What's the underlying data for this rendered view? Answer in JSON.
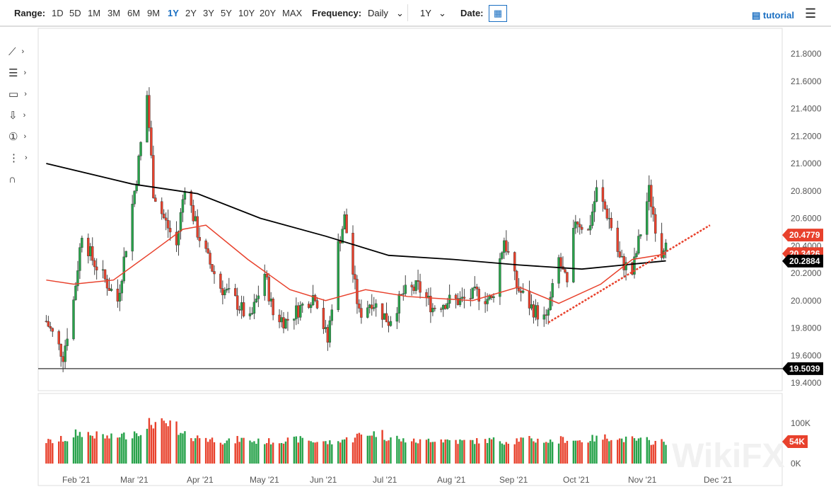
{
  "toolbar": {
    "range_label": "Range:",
    "ranges": [
      "1D",
      "5D",
      "1M",
      "3M",
      "6M",
      "9M",
      "1Y",
      "2Y",
      "3Y",
      "5Y",
      "10Y",
      "20Y",
      "MAX"
    ],
    "active_range": "1Y",
    "frequency_label": "Frequency:",
    "frequency": "Daily",
    "period": "1Y",
    "date_label": "Date:",
    "tutorial": "tutorial"
  },
  "tools": [
    "line-tool-icon",
    "fib-tool-icon",
    "rectangle-tool-icon",
    "arrow-tool-icon",
    "counter-tool-icon",
    "pattern-tool-icon",
    "magnet-icon"
  ],
  "colors": {
    "up": "#27a24a",
    "down": "#e8412c",
    "sma50": "#e8412c",
    "sma200": "#000000",
    "trend": "#e8412c"
  },
  "chart_data": {
    "type": "candlestick",
    "y_ticks": [
      "21.8000",
      "21.6000",
      "21.4000",
      "21.2000",
      "21.0000",
      "20.8000",
      "20.6000",
      "20.4000",
      "20.2000",
      "20.0000",
      "19.8000",
      "19.6000",
      "19.4000"
    ],
    "ylim": [
      19.4,
      21.8
    ],
    "x_ticks": [
      "Feb '21",
      "Mar '21",
      "Apr '21",
      "May '21",
      "Jun '21",
      "Jul '21",
      "Aug '21",
      "Sep '21",
      "Oct '21",
      "Nov '21",
      "Dec '21"
    ],
    "closes": [
      [
        "2021-01-19",
        19.85
      ],
      [
        "2021-01-27",
        19.6
      ],
      [
        "2021-02-01",
        20.0
      ],
      [
        "2021-02-05",
        20.5
      ],
      [
        "2021-02-10",
        20.3
      ],
      [
        "2021-02-16",
        20.15
      ],
      [
        "2021-02-22",
        20.0
      ],
      [
        "2021-02-26",
        20.4
      ],
      [
        "2021-03-03",
        20.9
      ],
      [
        "2021-03-08",
        21.5
      ],
      [
        "2021-03-11",
        20.8
      ],
      [
        "2021-03-16",
        20.6
      ],
      [
        "2021-03-22",
        20.4
      ],
      [
        "2021-03-26",
        20.85
      ],
      [
        "2021-04-01",
        20.5
      ],
      [
        "2021-04-06",
        20.3
      ],
      [
        "2021-04-12",
        20.1
      ],
      [
        "2021-04-19",
        20.0
      ],
      [
        "2021-04-26",
        19.85
      ],
      [
        "2021-05-03",
        20.2
      ],
      [
        "2021-05-07",
        19.9
      ],
      [
        "2021-05-13",
        19.85
      ],
      [
        "2021-05-20",
        19.95
      ],
      [
        "2021-05-27",
        20.05
      ],
      [
        "2021-06-02",
        19.7
      ],
      [
        "2021-06-07",
        20.4
      ],
      [
        "2021-06-10",
        20.6
      ],
      [
        "2021-06-17",
        19.9
      ],
      [
        "2021-06-23",
        20.0
      ],
      [
        "2021-07-01",
        19.85
      ],
      [
        "2021-07-08",
        20.05
      ],
      [
        "2021-07-15",
        20.1
      ],
      [
        "2021-07-22",
        19.95
      ],
      [
        "2021-07-29",
        20.0
      ],
      [
        "2021-08-05",
        20.0
      ],
      [
        "2021-08-12",
        20.05
      ],
      [
        "2021-08-19",
        20.0
      ],
      [
        "2021-08-25",
        20.45
      ],
      [
        "2021-08-31",
        20.1
      ],
      [
        "2021-09-07",
        19.95
      ],
      [
        "2021-09-14",
        19.85
      ],
      [
        "2021-09-20",
        20.3
      ],
      [
        "2021-09-24",
        20.1
      ],
      [
        "2021-09-28",
        20.6
      ],
      [
        "2021-10-04",
        20.5
      ],
      [
        "2021-10-08",
        20.8
      ],
      [
        "2021-10-14",
        20.6
      ],
      [
        "2021-10-19",
        20.3
      ],
      [
        "2021-10-25",
        20.2
      ],
      [
        "2021-10-29",
        20.5
      ],
      [
        "2021-11-02",
        20.8
      ],
      [
        "2021-11-05",
        20.55
      ],
      [
        "2021-11-08",
        20.35
      ],
      [
        "2021-11-10",
        20.48
      ]
    ],
    "sma200": [
      [
        "2021-01-19",
        21.0
      ],
      [
        "2021-03-01",
        20.85
      ],
      [
        "2021-04-01",
        20.78
      ],
      [
        "2021-05-01",
        20.6
      ],
      [
        "2021-06-01",
        20.47
      ],
      [
        "2021-07-01",
        20.33
      ],
      [
        "2021-08-01",
        20.3
      ],
      [
        "2021-09-01",
        20.26
      ],
      [
        "2021-10-01",
        20.23
      ],
      [
        "2021-11-10",
        20.29
      ]
    ],
    "sma50": [
      [
        "2021-01-19",
        20.15
      ],
      [
        "2021-02-01",
        20.12
      ],
      [
        "2021-02-20",
        20.15
      ],
      [
        "2021-03-10",
        20.35
      ],
      [
        "2021-03-25",
        20.52
      ],
      [
        "2021-04-05",
        20.55
      ],
      [
        "2021-04-25",
        20.3
      ],
      [
        "2021-05-15",
        20.08
      ],
      [
        "2021-06-01",
        20.0
      ],
      [
        "2021-06-20",
        20.08
      ],
      [
        "2021-07-10",
        20.03
      ],
      [
        "2021-08-10",
        20.0
      ],
      [
        "2021-09-01",
        20.1
      ],
      [
        "2021-09-20",
        19.98
      ],
      [
        "2021-10-10",
        20.12
      ],
      [
        "2021-10-25",
        20.3
      ],
      [
        "2021-11-10",
        20.34
      ]
    ],
    "trendline": [
      [
        "2021-09-15",
        19.84
      ],
      [
        "2021-12-01",
        20.55
      ]
    ],
    "horizontal_line": 19.5039,
    "labels": {
      "last": "20.4779",
      "sma50": "20.3426",
      "sma200": "20.2884",
      "hline": "19.5039"
    },
    "volume": {
      "y_ticks": [
        "100K",
        "0K"
      ],
      "last": "54K",
      "weekly_avg": [
        55,
        60,
        75,
        70,
        65,
        70,
        80,
        100,
        95,
        70,
        65,
        60,
        55,
        60,
        55,
        55,
        58,
        60,
        55,
        52,
        60,
        70,
        75,
        65,
        58,
        55,
        60,
        58,
        55,
        56,
        58,
        55,
        60,
        58,
        55,
        60,
        57,
        62,
        65,
        60,
        58,
        54
      ]
    }
  }
}
